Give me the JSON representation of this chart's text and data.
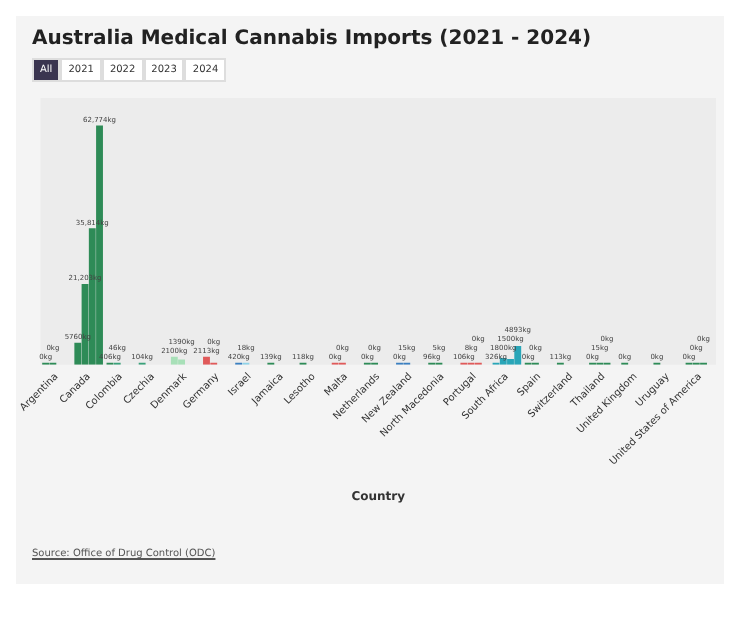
{
  "chart_data": {
    "type": "bar",
    "title": "Australia Medical Cannabis Imports (2021 - 2024)",
    "xlabel": "Country",
    "annotations": [
      "All",
      "2021",
      "2022",
      "2023",
      "2024",
      "Source: Office of Drug Control (ODC)"
    ],
    "categories": [
      "Argentina",
      "Canada",
      "Colombia",
      "Czechia",
      "Denmark",
      "Germany",
      "Israel",
      "Jamaica",
      "Lesotho",
      "Malta",
      "Netherlands",
      "New Zealand",
      "North Macedonia",
      "Portugal",
      "South Africa",
      "Spain",
      "Switzerland",
      "Thailand",
      "United Kingdom",
      "Uruguay",
      "United States of America"
    ],
    "series": [
      {
        "colors": [
          "#2e8b57",
          "#2e8b57",
          "#2e8b57",
          "#3aa17a",
          "#a8e0b8",
          "#e05a5a",
          "#3a7fc0",
          "#2e8b57",
          "#2e8b57",
          "#e05a5a",
          "#2e8b57",
          "#3a7fc0",
          "#2e8b57",
          "#e05a5a",
          "#29a6b8",
          "#2e8b57",
          "#2e8b57",
          "#2e8b57",
          "#2e8b57",
          "#2e8b57",
          "#2e8b57"
        ],
        "values": [
          0,
          5760,
          406,
          104,
          2100,
          2113,
          420,
          139,
          118,
          0,
          0,
          0,
          96,
          106,
          326,
          0,
          113,
          0,
          0,
          0,
          0
        ],
        "value_labels": [
          "0kg",
          "5760kg",
          "406kg",
          "104kg",
          "2100kg",
          "2113kg",
          "420kg",
          "139kg",
          "118kg",
          "0kg",
          "0kg",
          "0kg",
          "96kg",
          "106kg",
          "326kg",
          "0kg",
          "113kg",
          "0kg",
          "0kg",
          "0kg",
          "0kg"
        ]
      },
      {
        "colors": [
          "#2e8b57",
          "#2e8b57",
          "#3aa17a",
          "#3aa17a",
          "#a8e0b8",
          "#e05a5a",
          "#8fd3e8",
          "#2e8b57",
          "#2e8b57",
          "#e05a5a",
          "#2e8b57",
          "#3a7fc0",
          "#2e8b57",
          "#e05a5a",
          "#29a6b8",
          "#2e8b57",
          "#2e8b57",
          "#2e8b57",
          "#2e8b57",
          "#2e8b57",
          "#2e8b57"
        ],
        "values": [
          0,
          21203,
          46,
          null,
          1390,
          0,
          18,
          null,
          null,
          0,
          0,
          15,
          5,
          8,
          1800,
          0,
          null,
          15,
          null,
          null,
          0
        ],
        "value_labels": [
          "0kg",
          "21,203kg",
          "46kg",
          null,
          "1390kg",
          "0kg",
          "18kg",
          null,
          null,
          "0kg",
          "0kg",
          "15kg",
          "5kg",
          "8kg",
          "1800kg",
          "0kg",
          null,
          "15kg",
          null,
          null,
          "0kg"
        ]
      },
      {
        "colors": [
          "#2e8b57",
          "#2e8b57",
          "#2e8b57",
          "#3aa17a",
          "#a8e0b8",
          "#e05a5a",
          "#8fd3e8",
          "#2e8b57",
          "#2e8b57",
          "#e05a5a",
          "#2e8b57",
          "#3a7fc0",
          "#2e8b57",
          "#e05a5a",
          "#29a6b8",
          "#2e8b57",
          "#2e8b57",
          "#2e8b57",
          "#2e8b57",
          "#2e8b57",
          "#2e8b57"
        ],
        "values": [
          null,
          35814,
          null,
          null,
          null,
          null,
          null,
          null,
          null,
          null,
          null,
          null,
          null,
          0,
          1500,
          null,
          null,
          0,
          null,
          null,
          0
        ],
        "value_labels": [
          null,
          "35,814kg",
          null,
          null,
          null,
          null,
          null,
          null,
          null,
          null,
          null,
          null,
          null,
          "0kg",
          "1500kg",
          null,
          null,
          "0kg",
          null,
          null,
          "0kg"
        ]
      },
      {
        "colors": [
          "#2e8b57",
          "#2e8b57",
          "#2e8b57",
          "#3aa17a",
          "#a8e0b8",
          "#e05a5a",
          "#8fd3e8",
          "#2e8b57",
          "#2e8b57",
          "#e05a5a",
          "#2e8b57",
          "#3a7fc0",
          "#2e8b57",
          "#e05a5a",
          "#29a6b8",
          "#2e8b57",
          "#2e8b57",
          "#2e8b57",
          "#2e8b57",
          "#2e8b57",
          "#2e8b57"
        ],
        "values": [
          null,
          62774,
          null,
          null,
          null,
          null,
          null,
          null,
          null,
          null,
          null,
          null,
          null,
          null,
          4893,
          null,
          null,
          null,
          null,
          null,
          null
        ],
        "value_labels": [
          null,
          "62,774kg",
          null,
          null,
          null,
          null,
          null,
          null,
          null,
          null,
          null,
          null,
          null,
          null,
          "4893kg",
          null,
          null,
          null,
          null,
          null,
          null
        ]
      }
    ],
    "grid": false,
    "legend": false
  }
}
